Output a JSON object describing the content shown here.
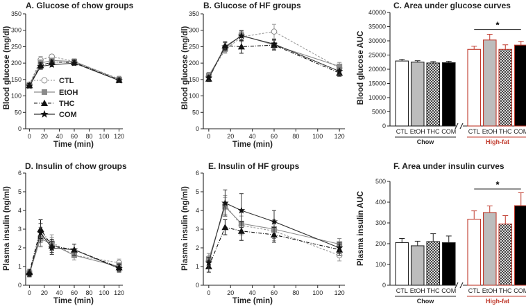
{
  "colors": {
    "CTL": "#aaaaaa",
    "EtOH": "#8a8a8a",
    "THC": "#111111",
    "COM": "#333333",
    "hf_accent": "#c0392b",
    "bar_gray": "#bdbdbd"
  },
  "legend": [
    {
      "name": "CTL",
      "icon": "open-circle-dotted-line"
    },
    {
      "name": "EtOH",
      "icon": "gray-square-solid-line"
    },
    {
      "name": "THC",
      "icon": "filled-triangle-dashdot-line"
    },
    {
      "name": "COM",
      "icon": "filled-star-solid-line"
    }
  ],
  "chart_data": [
    {
      "id": "A",
      "type": "line",
      "title": "A. Glucose of chow groups",
      "xlabel": "Time (min)",
      "ylabel": "Blood glucose (mg/dl)",
      "x": [
        0,
        15,
        30,
        60,
        120
      ],
      "xlim": [
        -5,
        125
      ],
      "xticks": [
        0,
        20,
        40,
        60,
        80,
        100,
        120
      ],
      "ylim": [
        0,
        350
      ],
      "yticks": [
        0,
        50,
        100,
        150,
        200,
        250,
        300,
        350
      ],
      "series": [
        {
          "name": "CTL",
          "values": [
            135,
            210,
            220,
            205,
            152
          ],
          "errors": [
            7,
            10,
            6,
            8,
            8
          ]
        },
        {
          "name": "EtOH",
          "values": [
            133,
            200,
            208,
            205,
            150
          ],
          "errors": [
            6,
            10,
            7,
            8,
            7
          ]
        },
        {
          "name": "THC",
          "values": [
            132,
            193,
            203,
            202,
            148
          ],
          "errors": [
            6,
            9,
            6,
            7,
            6
          ]
        },
        {
          "name": "COM",
          "values": [
            130,
            190,
            195,
            200,
            147
          ],
          "errors": [
            6,
            9,
            6,
            7,
            6
          ]
        }
      ]
    },
    {
      "id": "B",
      "type": "line",
      "title": "B. Glucose of HF groups",
      "xlabel": "Time (min)",
      "ylabel": "Blood glucose (mg/dl)",
      "x": [
        0,
        15,
        30,
        60,
        120
      ],
      "xlim": [
        -5,
        125
      ],
      "xticks": [
        0,
        20,
        40,
        60,
        80,
        100,
        120
      ],
      "ylim": [
        0,
        350
      ],
      "yticks": [
        0,
        50,
        100,
        150,
        200,
        250,
        300,
        350
      ],
      "series": [
        {
          "name": "CTL",
          "values": [
            160,
            240,
            280,
            296,
            185
          ],
          "errors": [
            10,
            10,
            15,
            22,
            12
          ]
        },
        {
          "name": "EtOH",
          "values": [
            162,
            245,
            285,
            255,
            190
          ],
          "errors": [
            10,
            10,
            15,
            15,
            12
          ]
        },
        {
          "name": "THC",
          "values": [
            152,
            253,
            250,
            255,
            170
          ],
          "errors": [
            8,
            12,
            20,
            15,
            10
          ]
        },
        {
          "name": "COM",
          "values": [
            155,
            250,
            283,
            258,
            175
          ],
          "errors": [
            8,
            12,
            15,
            15,
            10
          ]
        }
      ]
    },
    {
      "id": "C",
      "type": "bar",
      "title": "C. Area under glucose curves",
      "xlabel": "",
      "ylabel": "Blood glucose AUC",
      "ylim": [
        0,
        40000
      ],
      "yticks": [
        0,
        5000,
        10000,
        15000,
        20000,
        25000,
        30000,
        35000,
        40000
      ],
      "categories": [
        "CTL",
        "EtOH",
        "THC",
        "COM",
        "CTL",
        "EtOH",
        "THC",
        "COM"
      ],
      "groups": [
        "Chow",
        "High-fat"
      ],
      "values": [
        22900,
        22500,
        22200,
        22300,
        27000,
        30300,
        27000,
        28500
      ],
      "errors": [
        600,
        500,
        500,
        500,
        1100,
        2000,
        1600,
        1300
      ],
      "annotation": "*"
    },
    {
      "id": "D",
      "type": "line",
      "title": "D. Insulin of chow groups",
      "xlabel": "Time (min)",
      "ylabel": "Plasma insulin (ng/ml)",
      "x": [
        0,
        15,
        30,
        60,
        120
      ],
      "xlim": [
        -5,
        125
      ],
      "xticks": [
        0,
        20,
        40,
        60,
        80,
        100,
        120
      ],
      "ylim": [
        0,
        6
      ],
      "yticks": [
        0,
        1,
        2,
        3,
        4,
        5,
        6
      ],
      "series": [
        {
          "name": "CTL",
          "values": [
            0.6,
            2.6,
            2.3,
            1.6,
            1.2
          ],
          "errors": [
            0.15,
            0.5,
            0.4,
            0.25,
            0.2
          ]
        },
        {
          "name": "EtOH",
          "values": [
            0.65,
            2.5,
            2.2,
            1.6,
            1.0
          ],
          "errors": [
            0.15,
            0.45,
            0.35,
            0.25,
            0.2
          ]
        },
        {
          "name": "THC",
          "values": [
            0.7,
            3.0,
            2.1,
            1.9,
            0.95
          ],
          "errors": [
            0.15,
            0.5,
            0.35,
            0.3,
            0.2
          ]
        },
        {
          "name": "COM",
          "values": [
            0.6,
            2.8,
            2.0,
            1.9,
            0.9
          ],
          "errors": [
            0.15,
            0.5,
            0.35,
            0.3,
            0.2
          ]
        }
      ]
    },
    {
      "id": "E",
      "type": "line",
      "title": "E. Insulin of HF groups",
      "xlabel": "Time (min)",
      "ylabel": "Plasma insulin (ng/ml)",
      "x": [
        0,
        15,
        30,
        60,
        120
      ],
      "xlim": [
        -5,
        125
      ],
      "xticks": [
        0,
        20,
        40,
        60,
        80,
        100,
        120
      ],
      "ylim": [
        0,
        6
      ],
      "yticks": [
        0,
        1,
        2,
        3,
        4,
        5,
        6
      ],
      "series": [
        {
          "name": "CTL",
          "values": [
            1.3,
            4.3,
            3.2,
            2.9,
            1.6
          ],
          "errors": [
            0.3,
            0.5,
            0.5,
            0.5,
            0.3
          ]
        },
        {
          "name": "EtOH",
          "values": [
            1.4,
            4.2,
            3.3,
            3.0,
            2.2
          ],
          "errors": [
            0.3,
            0.5,
            0.6,
            0.5,
            0.3
          ]
        },
        {
          "name": "THC",
          "values": [
            1.0,
            3.1,
            2.9,
            2.7,
            1.9
          ],
          "errors": [
            0.3,
            0.4,
            0.5,
            0.4,
            0.3
          ]
        },
        {
          "name": "COM",
          "values": [
            1.2,
            4.4,
            4.0,
            3.4,
            2.0
          ],
          "errors": [
            0.3,
            0.7,
            0.9,
            0.6,
            0.3
          ]
        }
      ]
    },
    {
      "id": "F",
      "type": "bar",
      "title": "F. Area under insulin curves",
      "xlabel": "",
      "ylabel": "Plasma insulin AUC",
      "ylim": [
        0,
        500
      ],
      "yticks": [
        0,
        100,
        200,
        300,
        400,
        500
      ],
      "categories": [
        "CTL",
        "EtOH",
        "THC",
        "COM",
        "CTL",
        "EtOH",
        "THC",
        "COM"
      ],
      "groups": [
        "Chow",
        "High-fat"
      ],
      "values": [
        205,
        190,
        210,
        205,
        318,
        350,
        295,
        383
      ],
      "errors": [
        20,
        22,
        38,
        32,
        40,
        32,
        40,
        62
      ],
      "annotation": "*"
    }
  ]
}
